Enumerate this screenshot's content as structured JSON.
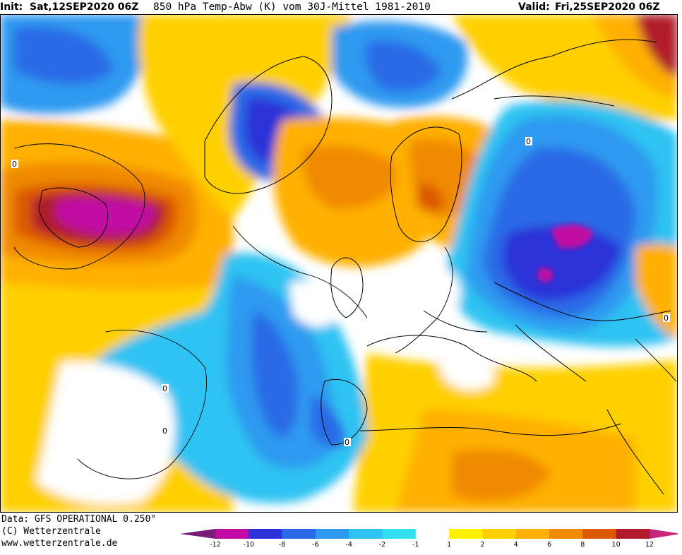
{
  "header": {
    "init_label": "Init:",
    "init_value": "Sat,12SEP2020 06Z",
    "title": "850 hPa Temp-Abw (K) vom 30J-Mittel 1981-2010",
    "valid_label": "Valid:",
    "valid_value": "Fri,25SEP2020 06Z"
  },
  "footer": {
    "data_line": "Data: GFS OPERATIONAL 0.250°",
    "copyright_line": "(C) Wetterzentrale",
    "url_line": "www.wetterzentrale.de"
  },
  "legend": {
    "ticks": [
      "-12",
      "-10",
      "-8",
      "-6",
      "-4",
      "-2",
      "-1",
      "1",
      "2",
      "4",
      "6",
      "8",
      "10",
      "12"
    ],
    "colors": [
      "#c10aa4",
      "#2a32d8",
      "#2b6ae6",
      "#2d9af0",
      "#2ec3f2",
      "#30e0ef",
      "#ffffff",
      "#fff200",
      "#ffd000",
      "#ffb000",
      "#f08a00",
      "#dc5a00",
      "#b01a2a"
    ],
    "end_left_color": "#7a1a7a",
    "end_right_color": "#c8287a"
  },
  "map": {
    "contour_labels": [
      "0",
      "0",
      "0",
      "0",
      "0",
      "0"
    ]
  }
}
